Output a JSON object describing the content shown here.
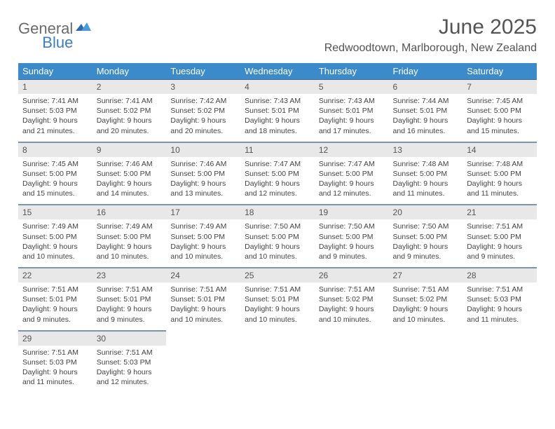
{
  "logo": {
    "text1": "General",
    "text2": "Blue"
  },
  "title": "June 2025",
  "location": "Redwoodtown, Marlborough, New Zealand",
  "colors": {
    "header_bg": "#3b8aca",
    "header_fg": "#ffffff",
    "daynum_bg": "#e8e8e8",
    "divider": "#7a96ad",
    "logo_gray": "#6b6b6b",
    "logo_blue": "#3b7fbf",
    "title_color": "#545454",
    "text_color": "#444444",
    "background": "#ffffff"
  },
  "dows": [
    "Sunday",
    "Monday",
    "Tuesday",
    "Wednesday",
    "Thursday",
    "Friday",
    "Saturday"
  ],
  "weeks": [
    {
      "nums": [
        "1",
        "2",
        "3",
        "4",
        "5",
        "6",
        "7"
      ],
      "cells": [
        {
          "sunrise": "Sunrise: 7:41 AM",
          "sunset": "Sunset: 5:03 PM",
          "day1": "Daylight: 9 hours",
          "day2": "and 21 minutes."
        },
        {
          "sunrise": "Sunrise: 7:41 AM",
          "sunset": "Sunset: 5:02 PM",
          "day1": "Daylight: 9 hours",
          "day2": "and 20 minutes."
        },
        {
          "sunrise": "Sunrise: 7:42 AM",
          "sunset": "Sunset: 5:02 PM",
          "day1": "Daylight: 9 hours",
          "day2": "and 20 minutes."
        },
        {
          "sunrise": "Sunrise: 7:43 AM",
          "sunset": "Sunset: 5:01 PM",
          "day1": "Daylight: 9 hours",
          "day2": "and 18 minutes."
        },
        {
          "sunrise": "Sunrise: 7:43 AM",
          "sunset": "Sunset: 5:01 PM",
          "day1": "Daylight: 9 hours",
          "day2": "and 17 minutes."
        },
        {
          "sunrise": "Sunrise: 7:44 AM",
          "sunset": "Sunset: 5:01 PM",
          "day1": "Daylight: 9 hours",
          "day2": "and 16 minutes."
        },
        {
          "sunrise": "Sunrise: 7:45 AM",
          "sunset": "Sunset: 5:00 PM",
          "day1": "Daylight: 9 hours",
          "day2": "and 15 minutes."
        }
      ]
    },
    {
      "nums": [
        "8",
        "9",
        "10",
        "11",
        "12",
        "13",
        "14"
      ],
      "cells": [
        {
          "sunrise": "Sunrise: 7:45 AM",
          "sunset": "Sunset: 5:00 PM",
          "day1": "Daylight: 9 hours",
          "day2": "and 15 minutes."
        },
        {
          "sunrise": "Sunrise: 7:46 AM",
          "sunset": "Sunset: 5:00 PM",
          "day1": "Daylight: 9 hours",
          "day2": "and 14 minutes."
        },
        {
          "sunrise": "Sunrise: 7:46 AM",
          "sunset": "Sunset: 5:00 PM",
          "day1": "Daylight: 9 hours",
          "day2": "and 13 minutes."
        },
        {
          "sunrise": "Sunrise: 7:47 AM",
          "sunset": "Sunset: 5:00 PM",
          "day1": "Daylight: 9 hours",
          "day2": "and 12 minutes."
        },
        {
          "sunrise": "Sunrise: 7:47 AM",
          "sunset": "Sunset: 5:00 PM",
          "day1": "Daylight: 9 hours",
          "day2": "and 12 minutes."
        },
        {
          "sunrise": "Sunrise: 7:48 AM",
          "sunset": "Sunset: 5:00 PM",
          "day1": "Daylight: 9 hours",
          "day2": "and 11 minutes."
        },
        {
          "sunrise": "Sunrise: 7:48 AM",
          "sunset": "Sunset: 5:00 PM",
          "day1": "Daylight: 9 hours",
          "day2": "and 11 minutes."
        }
      ]
    },
    {
      "nums": [
        "15",
        "16",
        "17",
        "18",
        "19",
        "20",
        "21"
      ],
      "cells": [
        {
          "sunrise": "Sunrise: 7:49 AM",
          "sunset": "Sunset: 5:00 PM",
          "day1": "Daylight: 9 hours",
          "day2": "and 10 minutes."
        },
        {
          "sunrise": "Sunrise: 7:49 AM",
          "sunset": "Sunset: 5:00 PM",
          "day1": "Daylight: 9 hours",
          "day2": "and 10 minutes."
        },
        {
          "sunrise": "Sunrise: 7:49 AM",
          "sunset": "Sunset: 5:00 PM",
          "day1": "Daylight: 9 hours",
          "day2": "and 10 minutes."
        },
        {
          "sunrise": "Sunrise: 7:50 AM",
          "sunset": "Sunset: 5:00 PM",
          "day1": "Daylight: 9 hours",
          "day2": "and 10 minutes."
        },
        {
          "sunrise": "Sunrise: 7:50 AM",
          "sunset": "Sunset: 5:00 PM",
          "day1": "Daylight: 9 hours",
          "day2": "and 9 minutes."
        },
        {
          "sunrise": "Sunrise: 7:50 AM",
          "sunset": "Sunset: 5:00 PM",
          "day1": "Daylight: 9 hours",
          "day2": "and 9 minutes."
        },
        {
          "sunrise": "Sunrise: 7:51 AM",
          "sunset": "Sunset: 5:00 PM",
          "day1": "Daylight: 9 hours",
          "day2": "and 9 minutes."
        }
      ]
    },
    {
      "nums": [
        "22",
        "23",
        "24",
        "25",
        "26",
        "27",
        "28"
      ],
      "cells": [
        {
          "sunrise": "Sunrise: 7:51 AM",
          "sunset": "Sunset: 5:01 PM",
          "day1": "Daylight: 9 hours",
          "day2": "and 9 minutes."
        },
        {
          "sunrise": "Sunrise: 7:51 AM",
          "sunset": "Sunset: 5:01 PM",
          "day1": "Daylight: 9 hours",
          "day2": "and 9 minutes."
        },
        {
          "sunrise": "Sunrise: 7:51 AM",
          "sunset": "Sunset: 5:01 PM",
          "day1": "Daylight: 9 hours",
          "day2": "and 10 minutes."
        },
        {
          "sunrise": "Sunrise: 7:51 AM",
          "sunset": "Sunset: 5:01 PM",
          "day1": "Daylight: 9 hours",
          "day2": "and 10 minutes."
        },
        {
          "sunrise": "Sunrise: 7:51 AM",
          "sunset": "Sunset: 5:02 PM",
          "day1": "Daylight: 9 hours",
          "day2": "and 10 minutes."
        },
        {
          "sunrise": "Sunrise: 7:51 AM",
          "sunset": "Sunset: 5:02 PM",
          "day1": "Daylight: 9 hours",
          "day2": "and 10 minutes."
        },
        {
          "sunrise": "Sunrise: 7:51 AM",
          "sunset": "Sunset: 5:03 PM",
          "day1": "Daylight: 9 hours",
          "day2": "and 11 minutes."
        }
      ]
    },
    {
      "nums": [
        "29",
        "30",
        "",
        "",
        "",
        "",
        ""
      ],
      "cells": [
        {
          "sunrise": "Sunrise: 7:51 AM",
          "sunset": "Sunset: 5:03 PM",
          "day1": "Daylight: 9 hours",
          "day2": "and 11 minutes."
        },
        {
          "sunrise": "Sunrise: 7:51 AM",
          "sunset": "Sunset: 5:03 PM",
          "day1": "Daylight: 9 hours",
          "day2": "and 12 minutes."
        },
        null,
        null,
        null,
        null,
        null
      ]
    }
  ]
}
